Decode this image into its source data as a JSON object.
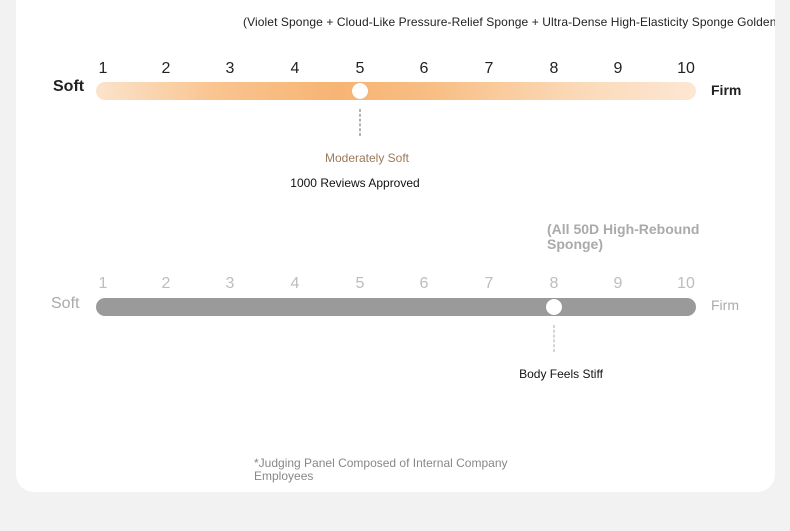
{
  "subtitle": "(Violet Sponge + Cloud-Like Pressure-Relief Sponge + Ultra-Dense High-Elasticity Sponge Golden Ratio",
  "scale_a": {
    "soft_label": "Soft",
    "firm_label": "Firm",
    "numbers": [
      "1",
      "2",
      "3",
      "4",
      "5",
      "6",
      "7",
      "8",
      "9",
      "10"
    ],
    "level": 5,
    "level_label": "Moderately Soft",
    "reviews_label": "1000 Reviews Approved",
    "colors": {
      "track_start": "#fbe3cb",
      "track_peak": "#f7b474",
      "track_end": "#fde7d3",
      "label": "#9a7a5a"
    }
  },
  "scale_b": {
    "material_label": "(All 50D High-Rebound Sponge)",
    "soft_label": "Soft",
    "firm_label": "Firm",
    "numbers": [
      "1",
      "2",
      "3",
      "4",
      "5",
      "6",
      "7",
      "8",
      "9",
      "10"
    ],
    "level": 8,
    "level_label": "Body Feels Stiff",
    "colors": {
      "track": "#9a9a9a",
      "numbers": "#bdbdbd"
    }
  },
  "footnote": "*Judging Panel Composed of Internal Company Employees"
}
